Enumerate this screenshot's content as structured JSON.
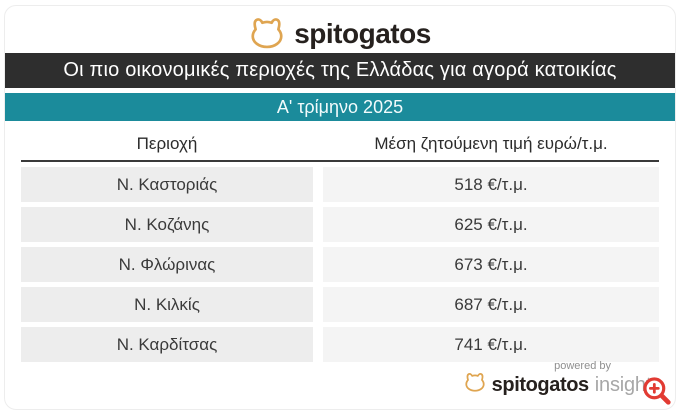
{
  "brand": {
    "name": "spitogatos",
    "accent_orange": "#dfa551"
  },
  "header": {
    "title": "Οι πιο οικονομικές περιοχές της Ελλάδας για αγορά κατοικίας",
    "title_bg": "#2e2e2e",
    "period": "Α' τρίμηνο 2025",
    "period_bg": "#1b8b9b"
  },
  "table": {
    "columns": [
      "Περιοχή",
      "Μέση ζητούμενη τιμή ευρώ/τ.μ."
    ],
    "rows": [
      {
        "area": "Ν. Καστοριάς",
        "price": "518 €/τ.μ."
      },
      {
        "area": "Ν. Κοζάνης",
        "price": "625 €/τ.μ."
      },
      {
        "area": "Ν. Φλώρινας",
        "price": "673 €/τ.μ."
      },
      {
        "area": "Ν. Κιλκίς",
        "price": "687 €/τ.μ."
      },
      {
        "area": "Ν. Καρδίτσας",
        "price": "741 €/τ.μ."
      }
    ]
  },
  "footer": {
    "powered_by": "powered by",
    "brand": "spitogatos",
    "brand_suffix": "insights"
  },
  "icons": {
    "cat": "spitogatos-cat-icon",
    "zoom": "zoom-in-icon",
    "zoom_color": "#e23b33"
  },
  "chart_data": {
    "type": "table",
    "title": "Οι πιο οικονομικές περιοχές της Ελλάδας για αγορά κατοικίας",
    "subtitle": "Α' τρίμηνο 2025",
    "columns": [
      "Περιοχή",
      "Μέση ζητούμενη τιμή ευρώ/τ.μ."
    ],
    "categories": [
      "Ν. Καστοριάς",
      "Ν. Κοζάνης",
      "Ν. Φλώρινας",
      "Ν. Κιλκίς",
      "Ν. Καρδίτσας"
    ],
    "values": [
      518,
      625,
      673,
      687,
      741
    ],
    "unit": "€/τ.μ.",
    "source": "spitogatos insights"
  }
}
